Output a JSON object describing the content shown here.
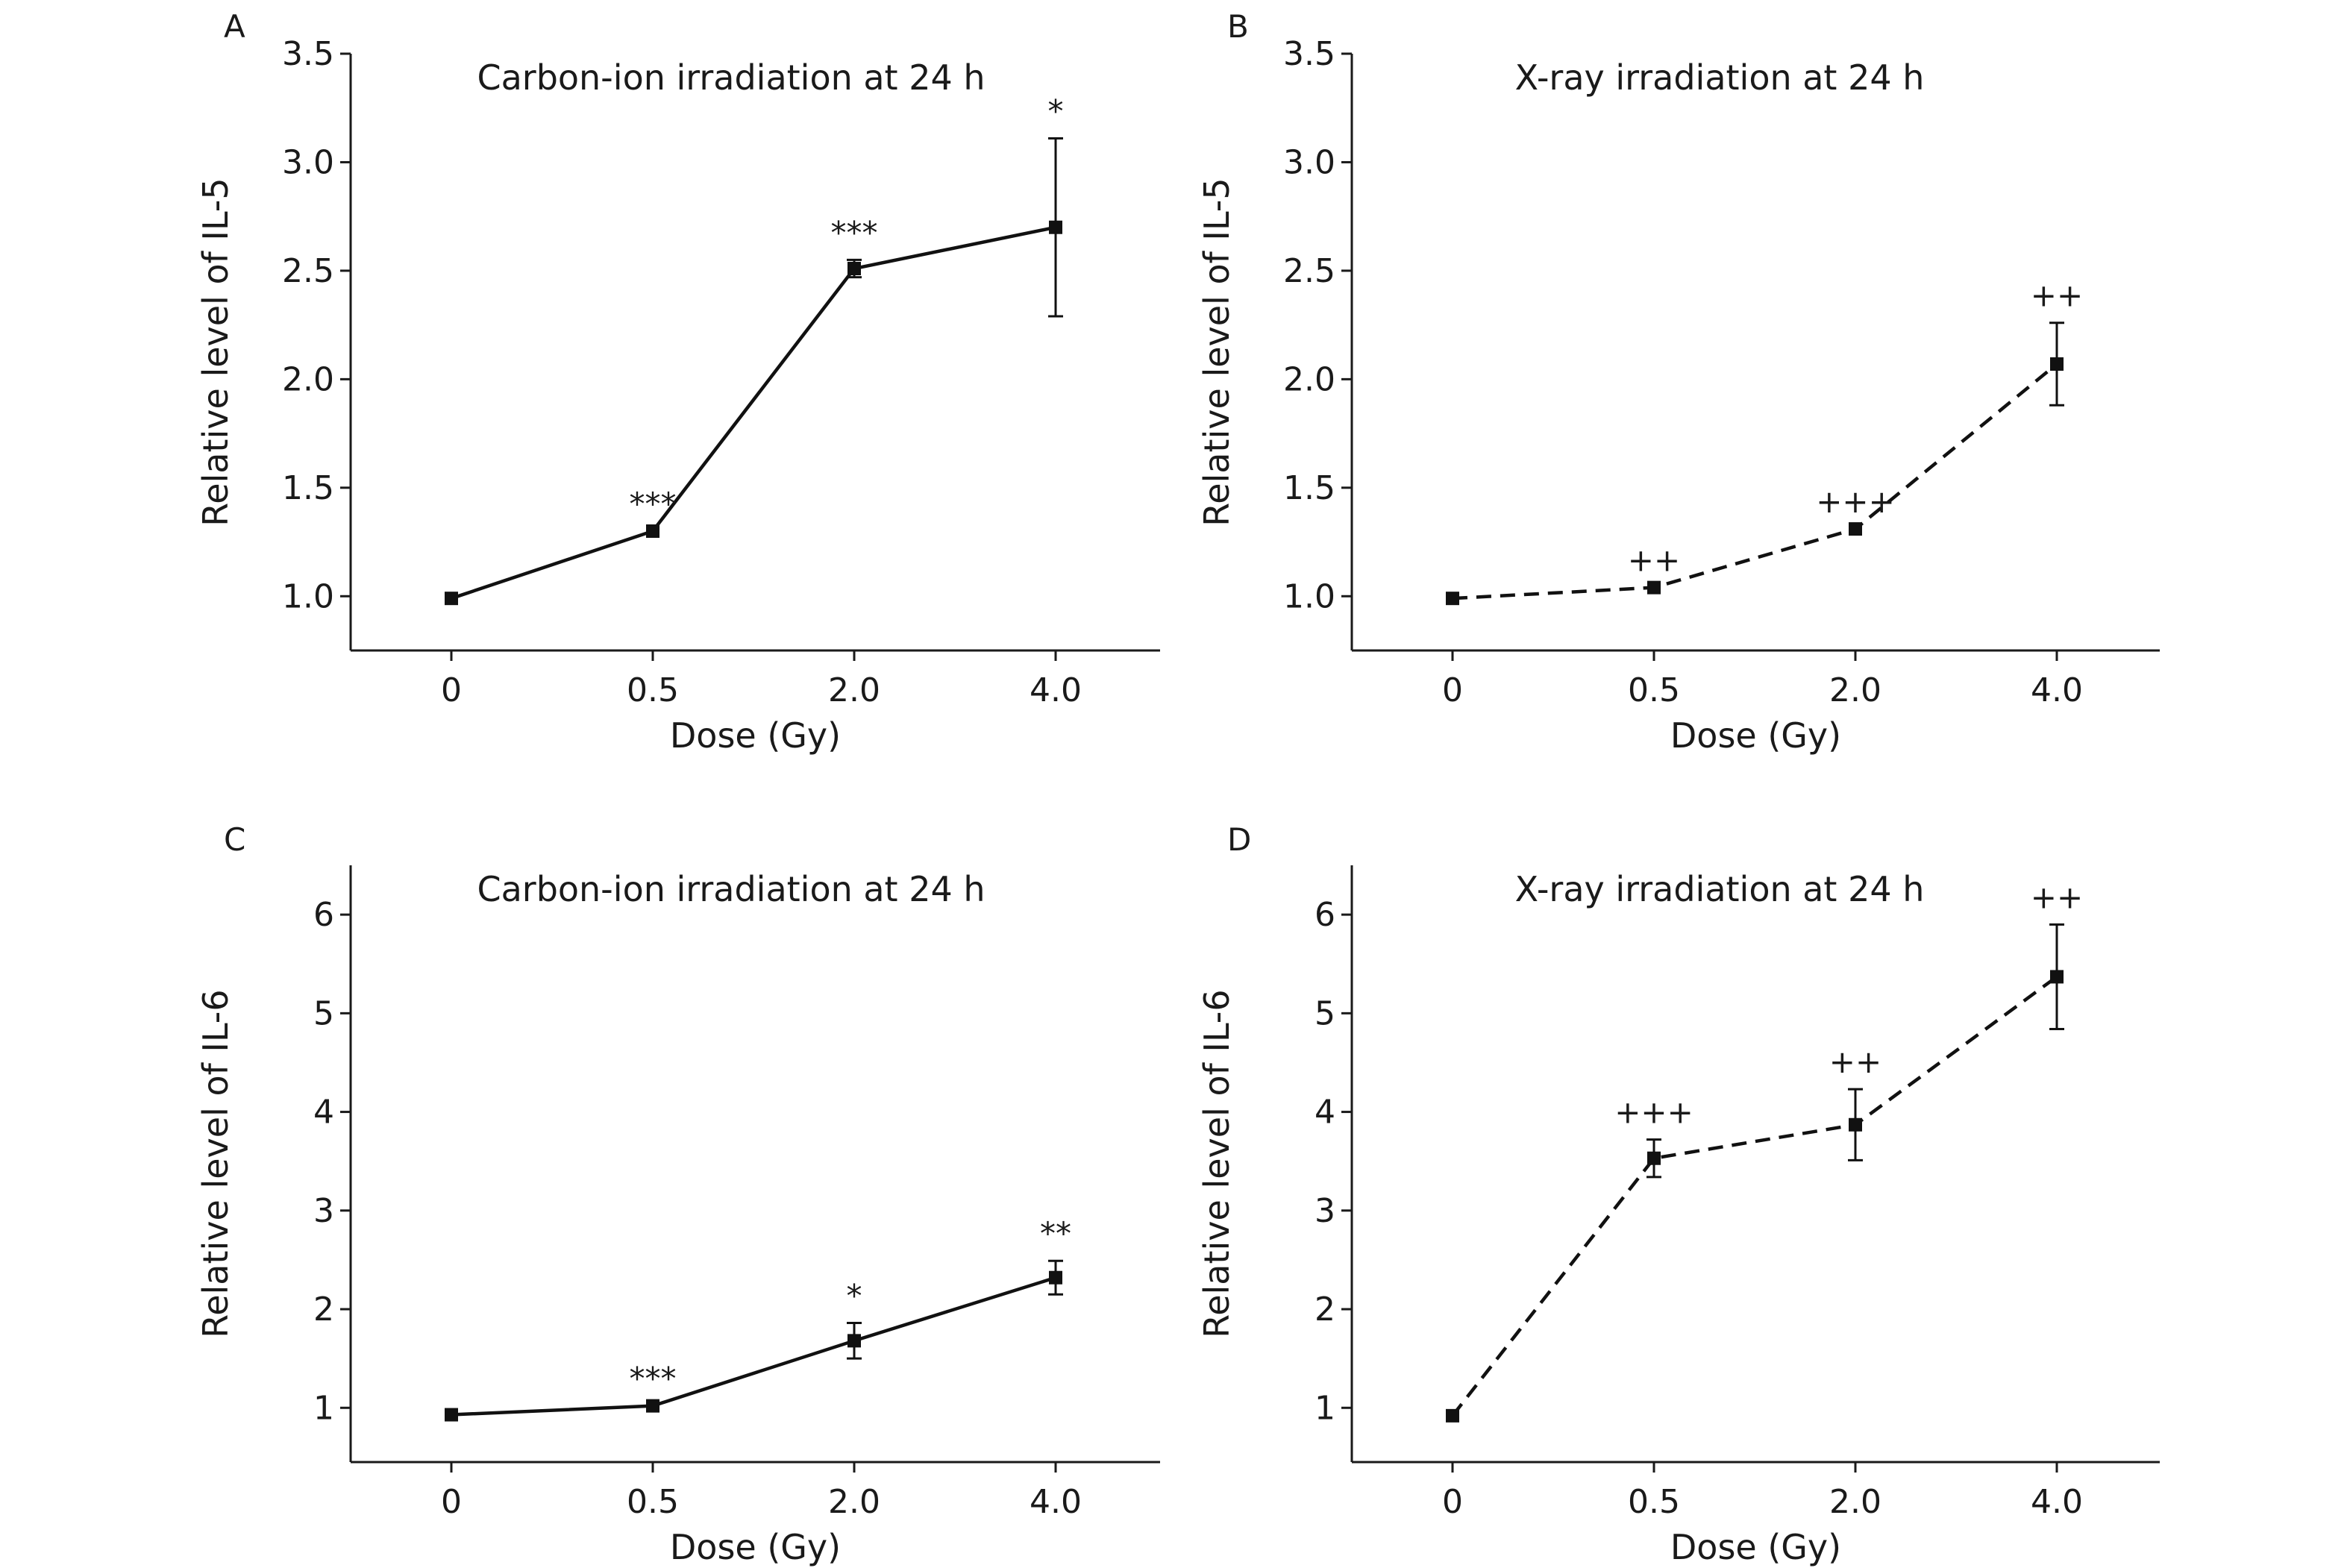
{
  "chart_data": [
    {
      "panel": "A",
      "type": "line",
      "title": "Carbon-ion irradiation at 24 h",
      "xlabel": "Dose (Gy)",
      "ylabel": "Relative level of IL-5",
      "categories": [
        "0",
        "0.5",
        "2.0",
        "4.0"
      ],
      "ylim": [
        0.75,
        3.5
      ],
      "yticks": [
        "1.0",
        "1.5",
        "2.0",
        "2.5",
        "3.0",
        "3.5"
      ],
      "line_style": "solid",
      "series": [
        {
          "values": [
            0.99,
            1.3,
            2.51,
            2.7
          ],
          "errors": [
            0.0,
            0.0,
            0.04,
            0.41
          ],
          "labels": [
            "",
            "***",
            "***",
            "*"
          ]
        }
      ]
    },
    {
      "panel": "B",
      "type": "line",
      "title": "X-ray irradiation at 24 h",
      "xlabel": "Dose (Gy)",
      "ylabel": "Relative level of IL-5",
      "categories": [
        "0",
        "0.5",
        "2.0",
        "4.0"
      ],
      "ylim": [
        0.75,
        3.5
      ],
      "yticks": [
        "1.0",
        "1.5",
        "2.0",
        "2.5",
        "3.0",
        "3.5"
      ],
      "line_style": "dashed",
      "series": [
        {
          "values": [
            0.99,
            1.04,
            1.31,
            2.07
          ],
          "errors": [
            0.0,
            0.0,
            0.0,
            0.19
          ],
          "labels": [
            "",
            "++",
            "+++",
            "++"
          ]
        }
      ]
    },
    {
      "panel": "C",
      "type": "line",
      "title": "Carbon-ion irradiation at 24 h",
      "xlabel": "Dose (Gy)",
      "ylabel": "Relative level of IL-6",
      "categories": [
        "0",
        "0.5",
        "2.0",
        "4.0"
      ],
      "ylim": [
        0.45,
        6.5
      ],
      "yticks": [
        "1",
        "2",
        "3",
        "4",
        "5",
        "6"
      ],
      "line_style": "solid",
      "series": [
        {
          "values": [
            0.93,
            1.02,
            1.68,
            2.32
          ],
          "errors": [
            0.0,
            0.0,
            0.18,
            0.17
          ],
          "labels": [
            "",
            "***",
            "*",
            "**"
          ]
        }
      ]
    },
    {
      "panel": "D",
      "type": "line",
      "title": "X-ray irradiation at 24 h",
      "xlabel": "Dose (Gy)",
      "ylabel": "Relative level of IL-6",
      "categories": [
        "0",
        "0.5",
        "2.0",
        "4.0"
      ],
      "ylim": [
        0.45,
        6.5
      ],
      "yticks": [
        "1",
        "2",
        "3",
        "4",
        "5",
        "6"
      ],
      "line_style": "dashed",
      "series": [
        {
          "values": [
            0.92,
            3.53,
            3.87,
            5.37
          ],
          "errors": [
            0.0,
            0.19,
            0.36,
            0.53
          ],
          "labels": [
            "",
            "+++",
            "++",
            "++"
          ]
        }
      ]
    }
  ]
}
